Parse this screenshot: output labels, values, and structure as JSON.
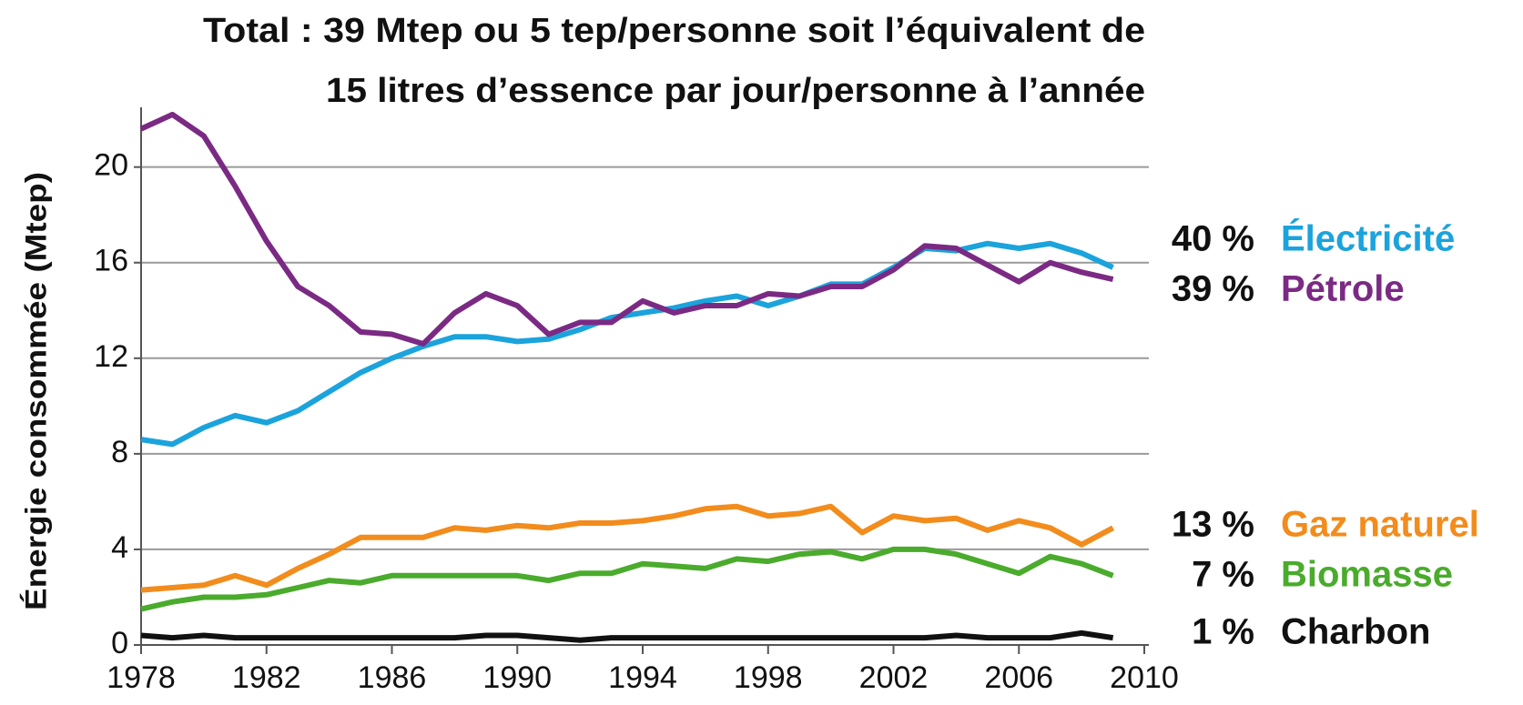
{
  "chart_data": {
    "type": "line",
    "title": "Total : 39 Mtep ou 5 tep/personne soit l’équivalent de",
    "subtitle": "15 litres d’essence par jour/personne à l’année",
    "y_label": "Énergie consommée (Mtep)",
    "x": [
      1978,
      1979,
      1980,
      1981,
      1982,
      1983,
      1984,
      1985,
      1986,
      1987,
      1988,
      1989,
      1990,
      1991,
      1992,
      1993,
      1994,
      1995,
      1996,
      1997,
      1998,
      1999,
      2000,
      2001,
      2002,
      2003,
      2004,
      2005,
      2006,
      2007,
      2008,
      2009
    ],
    "xlim": [
      1978,
      2010
    ],
    "xticks": [
      1978,
      1982,
      1986,
      1990,
      1994,
      1998,
      2002,
      2006,
      2010
    ],
    "ylim": [
      0,
      22.5
    ],
    "yticks": [
      0,
      4,
      8,
      12,
      16,
      20
    ],
    "grid": true,
    "series": [
      {
        "name": "Électricité",
        "share_label": "40 %",
        "color": "#1ba3dc",
        "values": [
          8.6,
          8.4,
          9.1,
          9.6,
          9.3,
          9.8,
          10.6,
          11.4,
          12.0,
          12.5,
          12.9,
          12.9,
          12.7,
          12.8,
          13.2,
          13.7,
          13.9,
          14.1,
          14.4,
          14.6,
          14.2,
          14.6,
          15.1,
          15.1,
          15.8,
          16.6,
          16.5,
          16.8,
          16.6,
          16.8,
          16.4,
          15.8
        ]
      },
      {
        "name": "Pétrole",
        "share_label": "39 %",
        "color": "#7b2a84",
        "values": [
          21.6,
          22.2,
          21.3,
          19.2,
          16.9,
          15.0,
          14.2,
          13.1,
          13.0,
          12.6,
          13.9,
          14.7,
          14.2,
          13.0,
          13.5,
          13.5,
          14.4,
          13.9,
          14.2,
          14.2,
          14.7,
          14.6,
          15.0,
          15.0,
          15.7,
          16.7,
          16.6,
          15.9,
          15.2,
          16.0,
          15.6,
          15.3
        ]
      },
      {
        "name": "Gaz naturel",
        "share_label": "13 %",
        "color": "#f28c1c",
        "values": [
          2.3,
          2.4,
          2.5,
          2.9,
          2.5,
          3.2,
          3.8,
          4.5,
          4.5,
          4.5,
          4.9,
          4.8,
          5.0,
          4.9,
          5.1,
          5.1,
          5.2,
          5.4,
          5.7,
          5.8,
          5.4,
          5.5,
          5.8,
          4.7,
          5.4,
          5.2,
          5.3,
          4.8,
          5.2,
          4.9,
          4.2,
          4.9
        ]
      },
      {
        "name": "Biomasse",
        "share_label": "7 %",
        "color": "#4aab2c",
        "values": [
          1.5,
          1.8,
          2.0,
          2.0,
          2.1,
          2.4,
          2.7,
          2.6,
          2.9,
          2.9,
          2.9,
          2.9,
          2.9,
          2.7,
          3.0,
          3.0,
          3.4,
          3.3,
          3.2,
          3.6,
          3.5,
          3.8,
          3.9,
          3.6,
          4.0,
          4.0,
          3.8,
          3.4,
          3.0,
          3.7,
          3.4,
          2.9
        ]
      },
      {
        "name": "Charbon",
        "share_label": "1 %",
        "color": "#111111",
        "values": [
          0.4,
          0.3,
          0.4,
          0.3,
          0.3,
          0.3,
          0.3,
          0.3,
          0.3,
          0.3,
          0.3,
          0.4,
          0.4,
          0.3,
          0.2,
          0.3,
          0.3,
          0.3,
          0.3,
          0.3,
          0.3,
          0.3,
          0.3,
          0.3,
          0.3,
          0.3,
          0.4,
          0.3,
          0.3,
          0.3,
          0.5,
          0.3
        ]
      }
    ]
  }
}
